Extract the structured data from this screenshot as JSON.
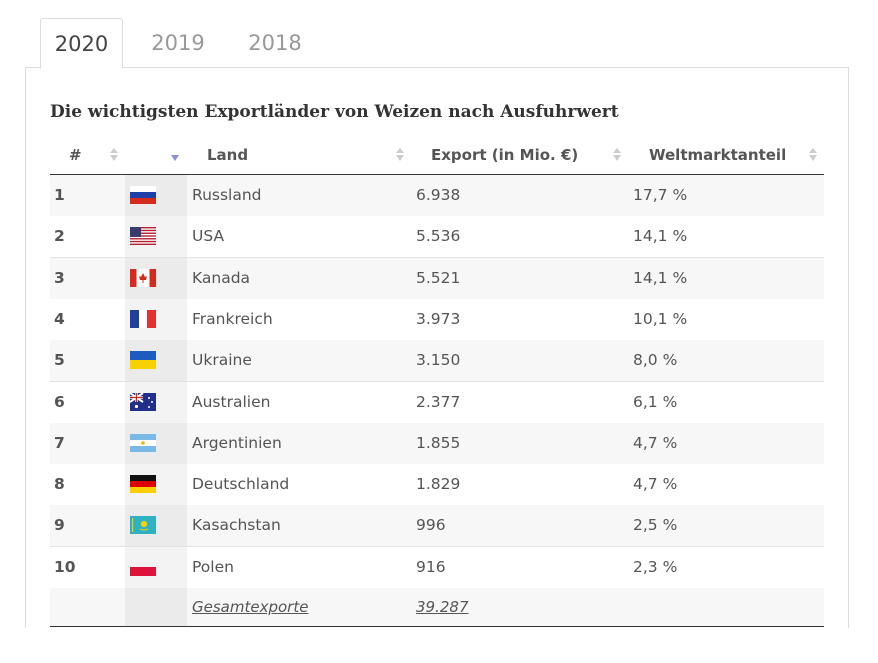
{
  "tabs": [
    "2020",
    "2019",
    "2018"
  ],
  "table": {
    "title": "Die wichtigsten Exportländer von Weizen nach Ausfuhrwert",
    "headers": [
      "#",
      "Land",
      "Export (in Mio. €)",
      "Weltmarktanteil"
    ],
    "rows": [
      [
        "1",
        "Russland",
        "6.938",
        "17,7 %"
      ],
      [
        "2",
        "USA",
        "5.536",
        "14,1 %"
      ],
      [
        "3",
        "Kanada",
        "5.521",
        "14,1 %"
      ],
      [
        "4",
        "Frankreich",
        "3.973",
        "10,1 %"
      ],
      [
        "5",
        "Ukraine",
        "3.150",
        "8,0 %"
      ],
      [
        "6",
        "Australien",
        "2.377",
        "6,1 %"
      ],
      [
        "7",
        "Argentinien",
        "1.855",
        "4,7 %"
      ],
      [
        "8",
        "Deutschland",
        "1.829",
        "4,7 %"
      ],
      [
        "9",
        "Kasachstan",
        "996",
        "2,5 %"
      ],
      [
        "10",
        "Polen",
        "916",
        "2,3 %"
      ]
    ],
    "footer": [
      "Gesamtexporte",
      "39.287"
    ]
  }
}
